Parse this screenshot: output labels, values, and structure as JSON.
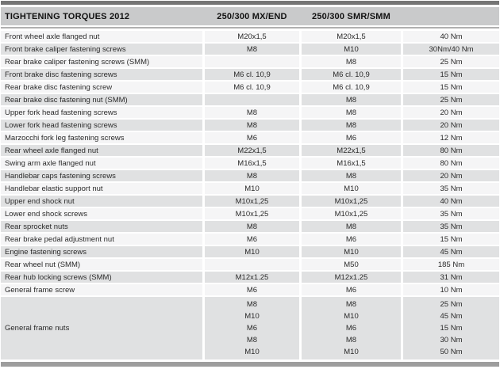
{
  "header": {
    "title": "TIGHTENING TORQUES 2012",
    "col_mx_end": "250/300 MX/END",
    "col_smr_smm": "250/300 SMR/SMM",
    "col_torque": ""
  },
  "colors": {
    "top-bar": "#757575",
    "bottom-bar": "#9d9d9d",
    "header-band": "#c9cacb",
    "row-gray": "#e0e1e2",
    "row-light": "#f5f5f6",
    "text": "#2b2b2b"
  },
  "table": {
    "rows": [
      {
        "label": "Front wheel axle flanged nut",
        "mx_end": "M20x1,5",
        "smr_smm": "M20x1,5",
        "torque": "40 Nm",
        "shade": "light"
      },
      {
        "label": "Front brake caliper fastening screws",
        "mx_end": "M8",
        "smr_smm": "M10",
        "torque": "30Nm/40 Nm",
        "shade": "gray"
      },
      {
        "label": "Rear brake caliper fastening screws (SMM)",
        "mx_end": "",
        "smr_smm": "M8",
        "torque": "25 Nm",
        "shade": "light"
      },
      {
        "label": "Front brake disc fastening screws",
        "mx_end": "M6 cl. 10,9",
        "smr_smm": "M6 cl. 10,9",
        "torque": "15 Nm",
        "shade": "gray"
      },
      {
        "label": "Rear brake disc fastening screw",
        "mx_end": "M6 cl. 10,9",
        "smr_smm": "M6 cl. 10,9",
        "torque": "15 Nm",
        "shade": "light"
      },
      {
        "label": "Rear brake disc fastening nut (SMM)",
        "mx_end": "",
        "smr_smm": "M8",
        "torque": "25 Nm",
        "shade": "gray"
      },
      {
        "label": "Upper fork head fastening screws",
        "mx_end": "M8",
        "smr_smm": "M8",
        "torque": "20 Nm",
        "shade": "light"
      },
      {
        "label": "Lower fork head fastening screws",
        "mx_end": "M8",
        "smr_smm": "M8",
        "torque": "20 Nm",
        "shade": "gray"
      },
      {
        "label": "Marzocchi fork leg fastening screws",
        "mx_end": "M6",
        "smr_smm": "M6",
        "torque": "12 Nm",
        "shade": "light"
      },
      {
        "label": "Rear wheel axle flanged nut",
        "mx_end": "M22x1,5",
        "smr_smm": "M22x1,5",
        "torque": "80 Nm",
        "shade": "gray"
      },
      {
        "label": "Swing arm axle flanged nut",
        "mx_end": "M16x1,5",
        "smr_smm": "M16x1,5",
        "torque": "80 Nm",
        "shade": "light"
      },
      {
        "label": "Handlebar caps fastening screws",
        "mx_end": "M8",
        "smr_smm": "M8",
        "torque": "20 Nm",
        "shade": "gray"
      },
      {
        "label": "Handlebar elastic support nut",
        "mx_end": "M10",
        "smr_smm": "M10",
        "torque": "35 Nm",
        "shade": "light"
      },
      {
        "label": "Upper end shock nut",
        "mx_end": "M10x1,25",
        "smr_smm": "M10x1,25",
        "torque": "40 Nm",
        "shade": "gray"
      },
      {
        "label": "Lower end shock screws",
        "mx_end": "M10x1,25",
        "smr_smm": "M10x1,25",
        "torque": "35 Nm",
        "shade": "light"
      },
      {
        "label": "Rear sprocket nuts",
        "mx_end": "M8",
        "smr_smm": "M8",
        "torque": "35 Nm",
        "shade": "gray"
      },
      {
        "label": "Rear brake pedal adjustment nut",
        "mx_end": "M6",
        "smr_smm": "M6",
        "torque": "15 Nm",
        "shade": "light"
      },
      {
        "label": "Engine fastening screws",
        "mx_end": "M10",
        "smr_smm": "M10",
        "torque": "45 Nm",
        "shade": "gray"
      },
      {
        "label": "Rear wheel nut (SMM)",
        "mx_end": "",
        "smr_smm": "M50",
        "torque": "185 Nm",
        "shade": "light"
      },
      {
        "label": "Rear hub locking screws (SMM)",
        "mx_end": "M12x1.25",
        "smr_smm": "M12x1.25",
        "torque": "31 Nm",
        "shade": "gray"
      },
      {
        "label": "General frame screw",
        "mx_end": "M6",
        "smr_smm": "M6",
        "torque": "10 Nm",
        "shade": "light"
      }
    ],
    "group": {
      "label": "General frame nuts",
      "rows": [
        {
          "mx_end": "M8",
          "smr_smm": "M8",
          "torque": "25 Nm"
        },
        {
          "mx_end": "M10",
          "smr_smm": "M10",
          "torque": "45 Nm"
        },
        {
          "mx_end": "M6",
          "smr_smm": "M6",
          "torque": "15 Nm"
        },
        {
          "mx_end": "M8",
          "smr_smm": "M8",
          "torque": "30 Nm"
        },
        {
          "mx_end": "M10",
          "smr_smm": "M10",
          "torque": "50 Nm"
        }
      ]
    }
  }
}
